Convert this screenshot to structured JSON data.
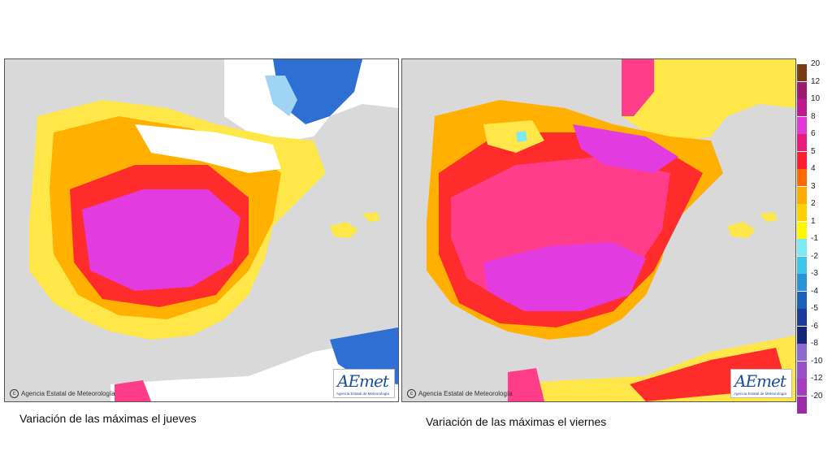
{
  "panels": [
    {
      "caption": "Variación de las máximas el jueves",
      "credit": "Agencia Estatal de Meteorología",
      "logo": {
        "mark": "AEmet",
        "sub": "Agencia Estatal de Meteorología"
      },
      "dominant_anomaly": "+6 to +8 °C over the central plateau"
    },
    {
      "caption": "Variación de las máximas el viernes",
      "credit": "Agencia Estatal de Meteorología",
      "logo": {
        "mark": "AEmet",
        "sub": "Agencia Estatal de Meteorología"
      },
      "dominant_anomaly": "+6 to +10 °C across most of the peninsula"
    }
  ],
  "legend": {
    "labels": [
      "20",
      "12",
      "10",
      "8",
      "6",
      "5",
      "4",
      "3",
      "2",
      "1",
      "-1",
      "-2",
      "-3",
      "-4",
      "-5",
      "-6",
      "-8",
      "-10",
      "-12",
      "-20"
    ],
    "colors": [
      "#7a3b10",
      "#9e1a6e",
      "#c2188f",
      "#e03ad6",
      "#ea1a7a",
      "#ff1e2e",
      "#ff6a00",
      "#ffaa00",
      "#ffd000",
      "#fff700",
      "#7fe9f2",
      "#3ec6ea",
      "#2a93d8",
      "#1b5fbd",
      "#1a3a9c",
      "#16247a",
      "#8c6ad0",
      "#9a4fc8",
      "#a73cc0",
      "#9c2aa8"
    ]
  },
  "colors": {
    "land_base": "#ffe74a",
    "warm": "#ffb000",
    "hot": "#ff2c2c",
    "very_hot": "#ff3d8a",
    "extreme": "#e23be0",
    "cool": "#2e6fd4",
    "sea": "#d9d9d9",
    "neutral": "#ffffff"
  }
}
